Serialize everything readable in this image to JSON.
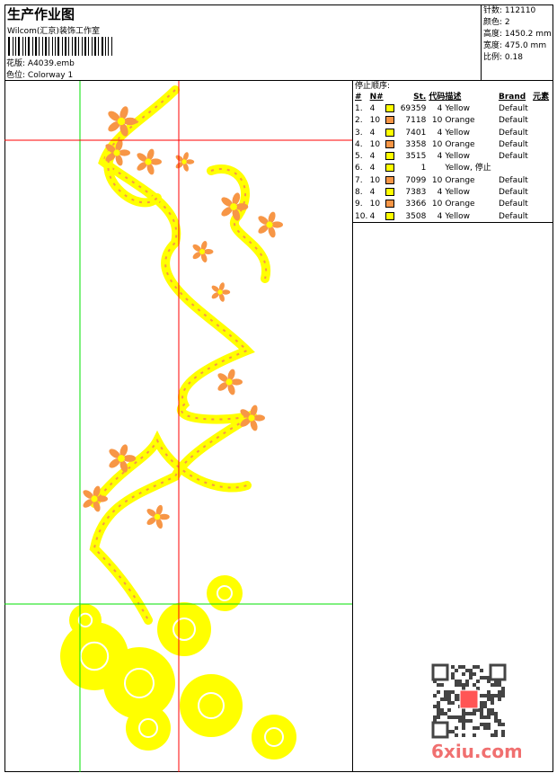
{
  "header": {
    "title": "生产作业图",
    "company": "Wilcom(汇京)装饰工作室",
    "design_label": "花版:",
    "design_value": "A4039.emb",
    "colorway_label": "色位:",
    "colorway_value": "Colorway 1"
  },
  "info": [
    {
      "label": "针数:",
      "value": "112110"
    },
    {
      "label": "颜色:",
      "value": "2"
    },
    {
      "label": "高度:",
      "value": "1450.2 mm"
    },
    {
      "label": "宽度:",
      "value": "475.0 mm"
    },
    {
      "label": "比例:",
      "value": "0.18"
    }
  ],
  "stops": {
    "title": "停止顺序:",
    "columns": [
      "#",
      "N#",
      "St.",
      "代码",
      "描述",
      "Brand",
      "元素"
    ],
    "rows": [
      {
        "n": "1.",
        "nn": "4",
        "color": "#ffff00",
        "st": "69359",
        "code": "4",
        "desc": "Yellow",
        "brand": "Default"
      },
      {
        "n": "2.",
        "nn": "10",
        "color": "#f79646",
        "st": "7118",
        "code": "10",
        "desc": "Orange",
        "brand": "Default"
      },
      {
        "n": "3.",
        "nn": "4",
        "color": "#ffff00",
        "st": "7401",
        "code": "4",
        "desc": "Yellow",
        "brand": "Default"
      },
      {
        "n": "4.",
        "nn": "10",
        "color": "#f79646",
        "st": "3358",
        "code": "10",
        "desc": "Orange",
        "brand": "Default"
      },
      {
        "n": "5.",
        "nn": "4",
        "color": "#ffff00",
        "st": "3515",
        "code": "4",
        "desc": "Yellow",
        "brand": "Default"
      },
      {
        "n": "6.",
        "nn": "4",
        "color": "#ffff00",
        "st": "1",
        "code": "",
        "desc": "Yellow, 停止",
        "brand": ""
      },
      {
        "n": "7.",
        "nn": "10",
        "color": "#f79646",
        "st": "7099",
        "code": "10",
        "desc": "Orange",
        "brand": "Default"
      },
      {
        "n": "8.",
        "nn": "4",
        "color": "#ffff00",
        "st": "7383",
        "code": "4",
        "desc": "Yellow",
        "brand": "Default"
      },
      {
        "n": "9.",
        "nn": "10",
        "color": "#f79646",
        "st": "3366",
        "code": "10",
        "desc": "Orange",
        "brand": "Default"
      },
      {
        "n": "10.",
        "nn": "4",
        "color": "#ffff00",
        "st": "3508",
        "code": "4",
        "desc": "Yellow",
        "brand": "Default"
      }
    ]
  },
  "watermark": {
    "text": "6xiu.com",
    "seal": "以图服版"
  },
  "colors": {
    "yellow": "#ffff00",
    "orange": "#f79646",
    "guide_green": "#00e000",
    "guide_red": "#ff0000"
  }
}
